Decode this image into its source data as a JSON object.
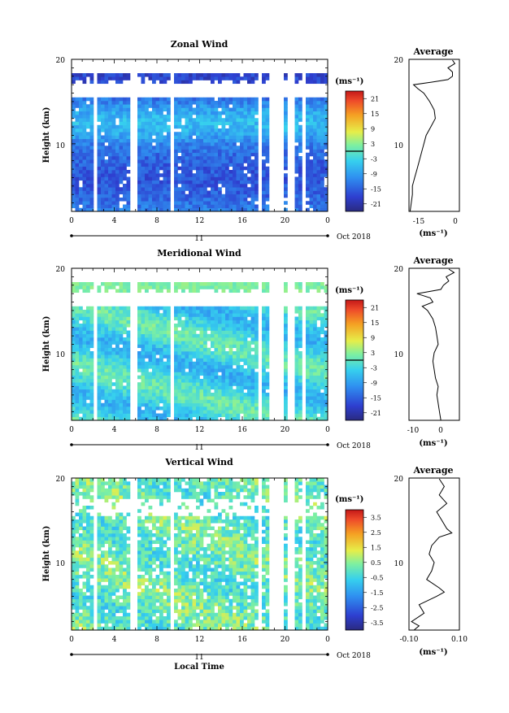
{
  "x_axis": {
    "ticks": [
      "0",
      "4",
      "8",
      "12",
      "16",
      "20",
      "0"
    ],
    "day_label": "11",
    "date_label": "Oct 2018",
    "xlabel": "Local Time"
  },
  "chart_data": [
    {
      "type": "heatmap",
      "title": "Zonal Wind",
      "ylabel": "Height (km)",
      "yticks": [
        "20",
        "10"
      ],
      "ylim": [
        2,
        20
      ],
      "xlim": [
        0,
        24
      ],
      "colorbar_unit": "(ms⁻¹)",
      "colorbar_ticks": [
        "21",
        "15",
        "9",
        "3",
        "-3",
        "-9",
        "-15",
        "-21"
      ],
      "colorbar_range": [
        -24,
        24
      ],
      "contour_level": 0,
      "profile": {
        "title": "Average",
        "xlabel": "(ms⁻¹)",
        "xticks": [
          "-15",
          "0"
        ],
        "xlim": [
          -20,
          2
        ],
        "yticks": [
          "20",
          "10"
        ],
        "points": [
          [
            -19.5,
            2.0
          ],
          [
            -19,
            3
          ],
          [
            -18.5,
            4
          ],
          [
            -18.5,
            5
          ],
          [
            -17.5,
            6
          ],
          [
            -16.5,
            7
          ],
          [
            -15.5,
            8
          ],
          [
            -14.5,
            9
          ],
          [
            -13.5,
            10
          ],
          [
            -12.5,
            11
          ],
          [
            -10.5,
            12
          ],
          [
            -8.5,
            13
          ],
          [
            -9,
            14
          ],
          [
            -11,
            15
          ],
          [
            -13.5,
            16
          ],
          [
            -16,
            16.5
          ],
          [
            -18,
            17
          ],
          [
            -10,
            17.3
          ],
          [
            -3,
            17.6
          ],
          [
            -1,
            18
          ],
          [
            -1,
            18.5
          ],
          [
            -3,
            19
          ],
          [
            0,
            19.5
          ],
          [
            -1,
            19.9
          ]
        ]
      }
    },
    {
      "type": "heatmap",
      "title": "Meridional Wind",
      "ylabel": "Height (km)",
      "yticks": [
        "20",
        "10"
      ],
      "ylim": [
        2,
        20
      ],
      "xlim": [
        0,
        24
      ],
      "colorbar_unit": "(ms⁻¹)",
      "colorbar_ticks": [
        "21",
        "15",
        "9",
        "3",
        "-3",
        "-9",
        "-15",
        "-21"
      ],
      "colorbar_range": [
        -24,
        24
      ],
      "contour_level": 0,
      "profile": {
        "title": "Average",
        "xlabel": "(ms⁻¹)",
        "xticks": [
          "-10",
          "0"
        ],
        "xlim": [
          -12,
          7
        ],
        "yticks": [
          "20",
          "10"
        ],
        "points": [
          [
            0,
            2.0
          ],
          [
            -0.5,
            3
          ],
          [
            -1,
            4
          ],
          [
            -1.5,
            5
          ],
          [
            -1,
            6
          ],
          [
            -2,
            7
          ],
          [
            -2.5,
            8
          ],
          [
            -3,
            9
          ],
          [
            -2.5,
            10
          ],
          [
            -1,
            11
          ],
          [
            -1.5,
            12
          ],
          [
            -2,
            13
          ],
          [
            -3,
            14
          ],
          [
            -5,
            15
          ],
          [
            -7,
            15.5
          ],
          [
            -3,
            16
          ],
          [
            -4,
            16.5
          ],
          [
            -9,
            17
          ],
          [
            0,
            17.5
          ],
          [
            1,
            18
          ],
          [
            3,
            18.5
          ],
          [
            2,
            19
          ],
          [
            5,
            19.5
          ],
          [
            3,
            19.9
          ]
        ]
      }
    },
    {
      "type": "heatmap",
      "title": "Vertical Wind",
      "ylabel": "Height (km)",
      "yticks": [
        "20",
        "10"
      ],
      "ylim": [
        2,
        20
      ],
      "xlim": [
        0,
        24
      ],
      "colorbar_unit": "(ms⁻¹)",
      "colorbar_ticks": [
        "3.5",
        "2.5",
        "1.5",
        "0.5",
        "-0.5",
        "-1.5",
        "-2.5",
        "-3.5"
      ],
      "colorbar_range": [
        -4,
        4
      ],
      "profile": {
        "title": "Average",
        "xlabel": "(ms⁻¹)",
        "xticks": [
          "-0.10",
          "0.10"
        ],
        "xlim": [
          -0.1,
          0.1
        ],
        "yticks": [
          "20",
          "10"
        ],
        "points": [
          [
            -0.08,
            2.0
          ],
          [
            -0.06,
            2.5
          ],
          [
            -0.09,
            3
          ],
          [
            -0.04,
            4
          ],
          [
            -0.06,
            5
          ],
          [
            0.01,
            6
          ],
          [
            0.04,
            6.5
          ],
          [
            0.02,
            7
          ],
          [
            -0.03,
            8
          ],
          [
            -0.01,
            9
          ],
          [
            0,
            10
          ],
          [
            -0.02,
            11
          ],
          [
            -0.01,
            12
          ],
          [
            0.02,
            13
          ],
          [
            0.07,
            13.5
          ],
          [
            0.05,
            14
          ],
          [
            0.03,
            15
          ],
          [
            0.01,
            16
          ],
          [
            0.05,
            17
          ],
          [
            0.02,
            18
          ],
          [
            0.04,
            19
          ],
          [
            0.02,
            19.9
          ]
        ]
      }
    }
  ]
}
